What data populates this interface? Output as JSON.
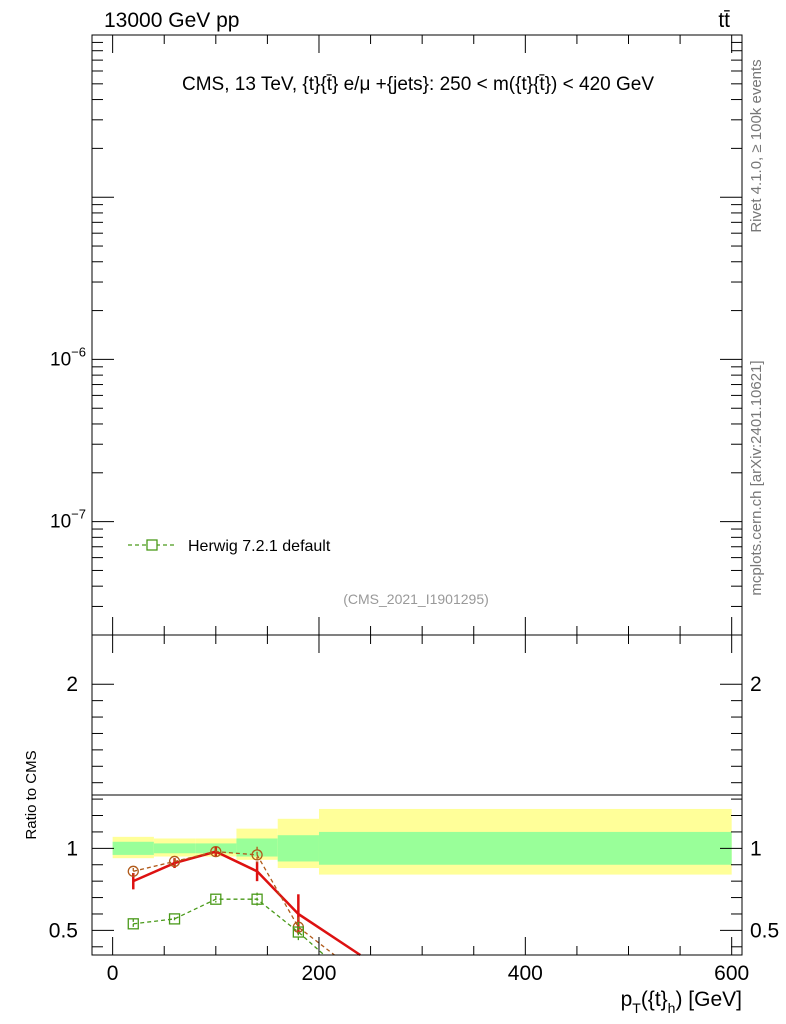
{
  "header": {
    "left": "13000 GeV pp",
    "right": "tt̄"
  },
  "side_labels": {
    "rivet": "Rivet 4.1.0, ≥ 100k events",
    "mcplots": "mcplots.cern.ch [arXiv:2401.10621]"
  },
  "chart_data": [
    {
      "type": "line",
      "panel": "main",
      "title": "CMS, 13 TeV, {t}{t̄} e/μ +{jets}: 250 < m({t}{t̄}) < 420 GeV",
      "analysis_tag": "(CMS_2021_I1901295)",
      "yscale": "log",
      "ylim": [
        2e-08,
        0.0001
      ],
      "xlim": [
        -20,
        610
      ],
      "ytick_labels": [
        {
          "value": 1e-06,
          "base": "10",
          "exp": "−6"
        },
        {
          "value": 1e-07,
          "base": "10",
          "exp": "−7"
        }
      ],
      "legend": {
        "placement": "bottom-left",
        "entries": [
          {
            "name": "Herwig 7.2.1 default",
            "color": "#4a9a1a",
            "marker": "square",
            "dash": "dashed"
          }
        ]
      }
    },
    {
      "type": "line",
      "panel": "ratio",
      "ylabel": "Ratio to CMS",
      "xlabel": "p_T({t}_h) [GeV]",
      "xlim": [
        -20,
        610
      ],
      "ylim": [
        0.35,
        2.3
      ],
      "xticks": [
        0,
        200,
        400,
        600
      ],
      "yticks": [
        0.5,
        1,
        2
      ],
      "ytick_labels": [
        "0.5",
        "1",
        "2"
      ],
      "band_edges": [
        0,
        40,
        80,
        120,
        160,
        200,
        600
      ],
      "band_inner": [
        [
          0.96,
          1.04
        ],
        [
          0.97,
          1.03
        ],
        [
          0.97,
          1.03
        ],
        [
          0.95,
          1.06
        ],
        [
          0.92,
          1.08
        ],
        [
          0.9,
          1.1
        ]
      ],
      "band_outer": [
        [
          0.94,
          1.07
        ],
        [
          0.95,
          1.06
        ],
        [
          0.95,
          1.06
        ],
        [
          0.93,
          1.12
        ],
        [
          0.88,
          1.18
        ],
        [
          0.84,
          1.24
        ]
      ],
      "series": [
        {
          "color": "#dd1111",
          "marker": "none",
          "dash": "solid",
          "x": [
            20,
            60,
            100,
            140,
            180,
            240
          ],
          "y": [
            0.8,
            0.91,
            0.98,
            0.86,
            0.6,
            0.35
          ],
          "err": [
            0.05,
            0.03,
            0.03,
            0.06,
            0.12,
            0.0
          ]
        },
        {
          "color": "#b05a1a",
          "marker": "circle",
          "dash": "dashed",
          "x": [
            20,
            60,
            100,
            140,
            180,
            215
          ],
          "y": [
            0.86,
            0.92,
            0.98,
            0.96,
            0.52,
            0.35
          ],
          "err": [
            0.02,
            0.02,
            0.02,
            0.05,
            0.06,
            0.0
          ]
        },
        {
          "color": "#4a9a1a",
          "marker": "square",
          "dash": "dashed",
          "x": [
            20,
            60,
            100,
            140,
            180,
            205
          ],
          "y": [
            0.54,
            0.57,
            0.69,
            0.69,
            0.49,
            0.35
          ],
          "err": [
            0.03,
            0.01,
            0.02,
            0.04,
            0.06,
            0.0
          ]
        }
      ]
    }
  ]
}
